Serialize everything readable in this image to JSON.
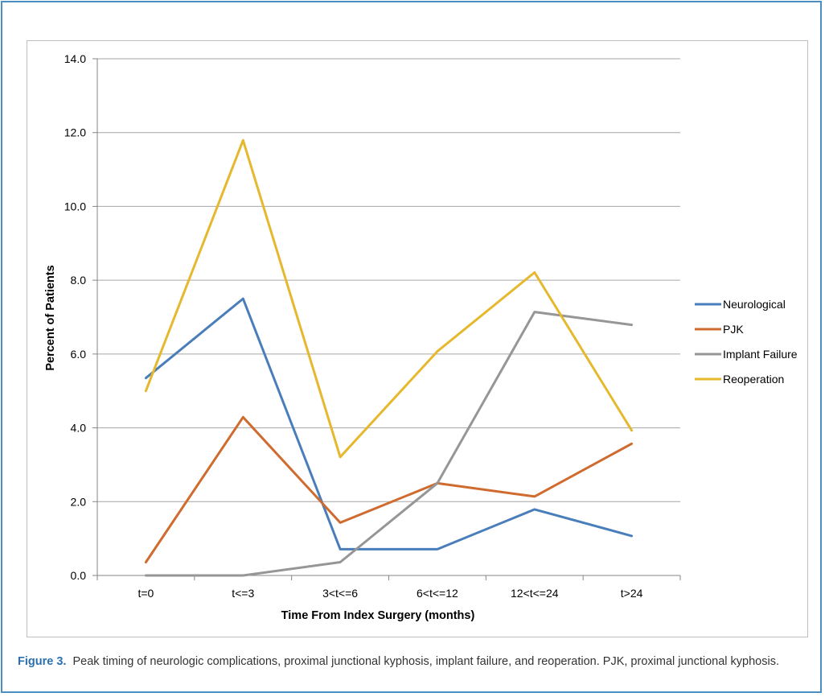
{
  "chart_data": {
    "type": "line",
    "categories": [
      "t=0",
      "t<=3",
      "3<t<=6",
      "6<t<=12",
      "12<t<=24",
      "t>24"
    ],
    "xlabel": "Time From Index Surgery (months)",
    "ylabel": "Percent of Patients",
    "ylim": [
      0,
      14
    ],
    "yticks": [
      "0.0",
      "2.0",
      "4.0",
      "6.0",
      "8.0",
      "10.0",
      "12.0",
      "14.0"
    ],
    "grid": true,
    "legend_position": "right",
    "series": [
      {
        "name": "Neurological",
        "color": "#4a7ebb",
        "values": [
          5.35,
          7.5,
          0.71,
          0.71,
          1.79,
          1.07
        ]
      },
      {
        "name": "PJK",
        "color": "#d06b2f",
        "values": [
          0.36,
          4.29,
          1.43,
          2.5,
          2.14,
          3.57
        ]
      },
      {
        "name": "Implant Failure",
        "color": "#969696",
        "values": [
          0.0,
          0.0,
          0.36,
          2.5,
          7.14,
          6.79
        ]
      },
      {
        "name": "Reoperation",
        "color": "#e6b82e",
        "values": [
          5.0,
          11.79,
          3.21,
          6.07,
          8.21,
          3.93
        ]
      }
    ]
  },
  "caption": {
    "lead": "Figure 3.",
    "text": "Peak timing of neurologic complications, proximal junctional kyphosis, implant failure, and reoperation. PJK, proximal junctional kyphosis."
  }
}
